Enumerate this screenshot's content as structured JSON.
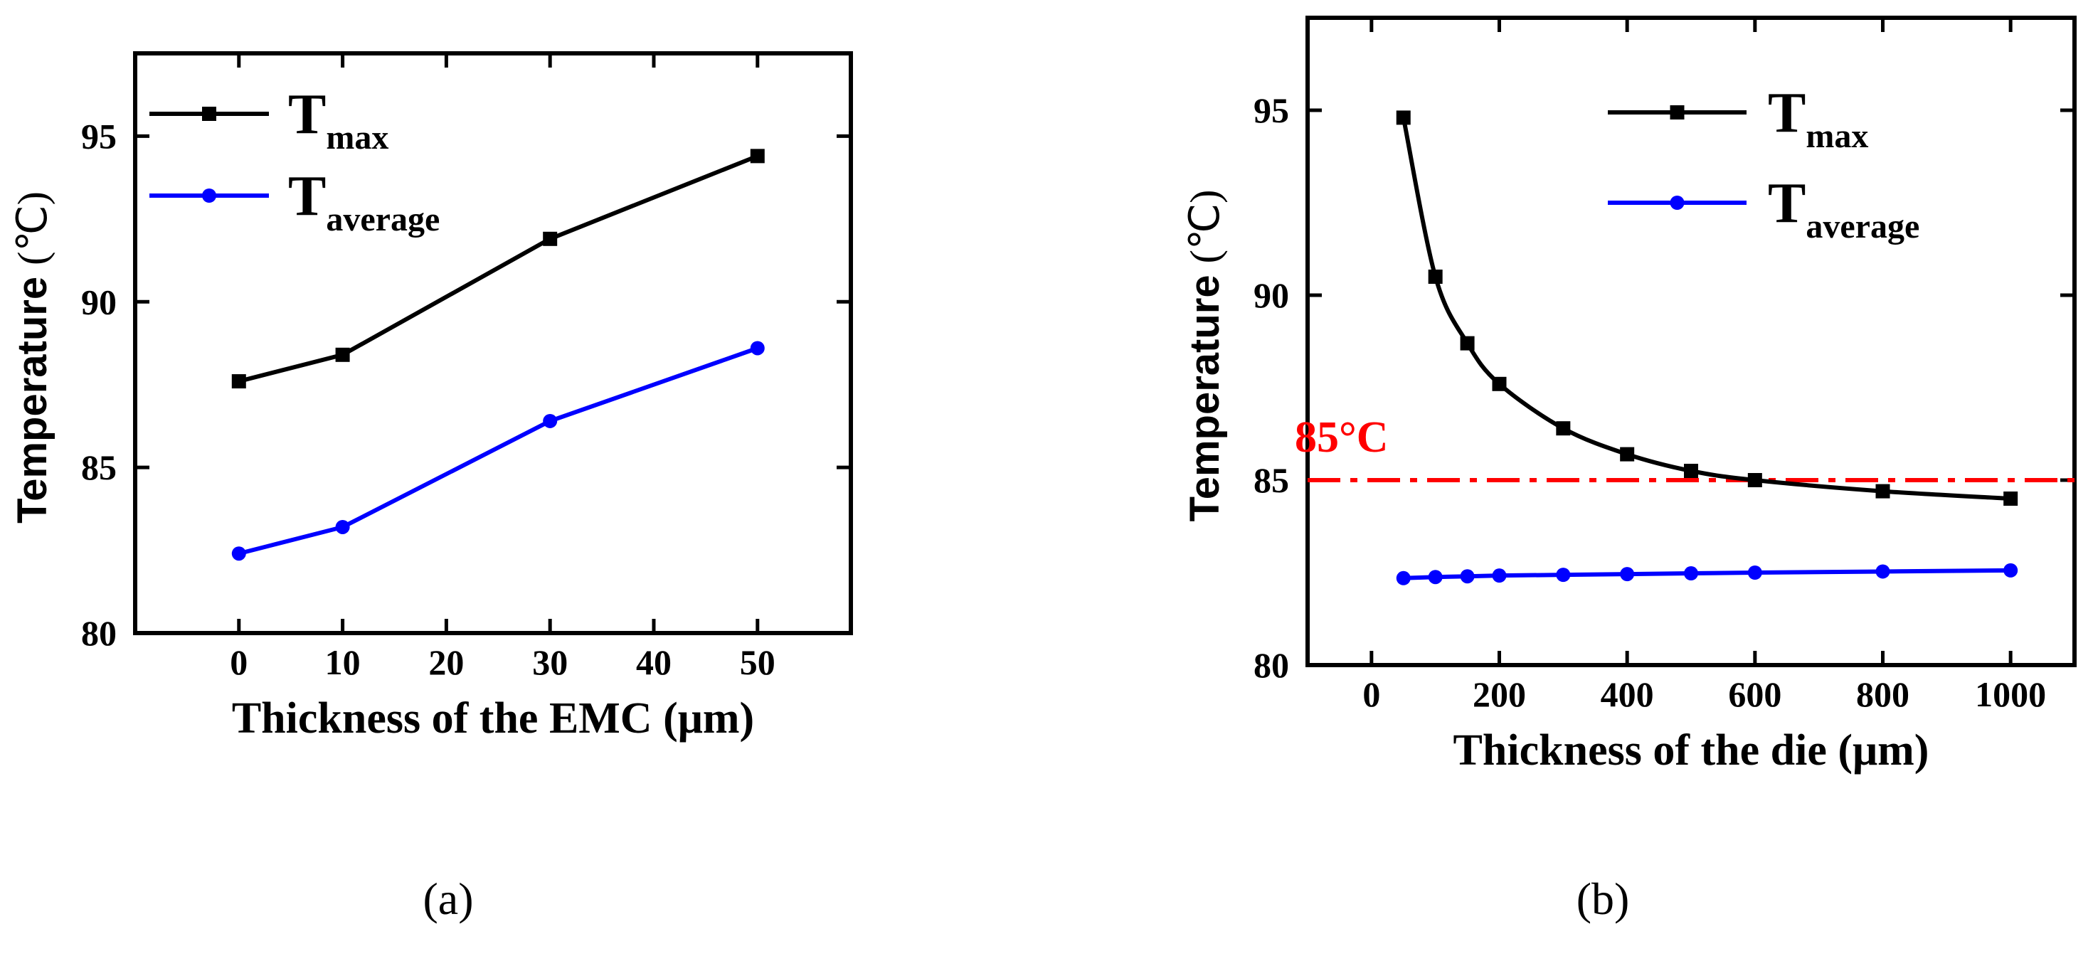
{
  "colors": {
    "tmax": "#000000",
    "tavg": "#0000ff",
    "threshold": "#ff0000"
  },
  "chart_data": [
    {
      "type": "line",
      "panel_label": "(a)",
      "xlabel": "Thickness of the EMC (μm)",
      "ylabel": "Temperature",
      "ylabel_unit": "(℃)",
      "xlim": [
        -10,
        59
      ],
      "ylim": [
        80,
        97.5
      ],
      "xticks": [
        0,
        10,
        20,
        30,
        40,
        50
      ],
      "xtick_labels": [
        "0",
        "10",
        "20",
        "30",
        "40",
        "50"
      ],
      "yticks": [
        80,
        85,
        90,
        95
      ],
      "ytick_labels": [
        "80",
        "85",
        "90",
        "95"
      ],
      "legend_position": "top-left",
      "series": [
        {
          "name": "Tmax",
          "label_main": "T",
          "label_sub": "max",
          "marker": "square",
          "color": "#000000",
          "x": [
            0,
            10,
            30,
            50
          ],
          "y": [
            87.6,
            88.4,
            91.9,
            94.4
          ]
        },
        {
          "name": "Taverage",
          "label_main": "T",
          "label_sub": "average",
          "marker": "circle",
          "color": "#0000ff",
          "x": [
            0,
            10,
            30,
            50
          ],
          "y": [
            82.4,
            83.2,
            86.4,
            88.6
          ]
        }
      ]
    },
    {
      "type": "line",
      "panel_label": "(b)",
      "xlabel": "Thickness of the die (μm)",
      "ylabel": "Temperature",
      "ylabel_unit": "(℃)",
      "xlim": [
        -100,
        1100
      ],
      "ylim": [
        80,
        97.5
      ],
      "xticks": [
        0,
        200,
        400,
        600,
        800,
        1000
      ],
      "xtick_labels": [
        "0",
        "200",
        "400",
        "600",
        "800",
        "1000"
      ],
      "yticks": [
        80,
        85,
        90,
        95
      ],
      "ytick_labels": [
        "80",
        "85",
        "90",
        "95"
      ],
      "legend_position": "top-right",
      "threshold": {
        "value": 85,
        "label": "85°C",
        "style": "dash-dot"
      },
      "series": [
        {
          "name": "Tmax",
          "label_main": "T",
          "label_sub": "max",
          "marker": "square",
          "color": "#000000",
          "x": [
            50,
            100,
            150,
            200,
            300,
            400,
            500,
            600,
            800,
            1000
          ],
          "y": [
            94.8,
            90.5,
            88.7,
            87.6,
            86.4,
            85.7,
            85.25,
            85.0,
            84.7,
            84.5
          ]
        },
        {
          "name": "Taverage",
          "label_main": "T",
          "label_sub": "average",
          "marker": "circle",
          "color": "#0000ff",
          "x": [
            50,
            100,
            150,
            200,
            300,
            400,
            500,
            600,
            800,
            1000
          ],
          "y": [
            82.35,
            82.38,
            82.4,
            82.42,
            82.44,
            82.46,
            82.48,
            82.5,
            82.53,
            82.56
          ]
        }
      ]
    }
  ]
}
